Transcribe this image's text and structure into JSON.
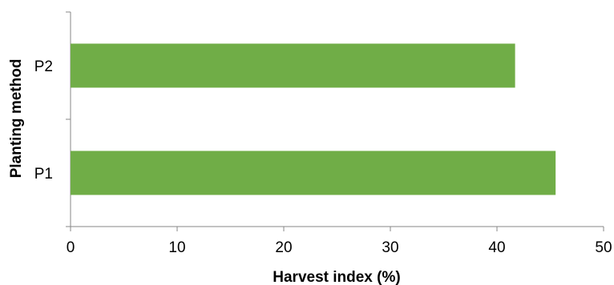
{
  "chart_data": {
    "type": "bar",
    "orientation": "horizontal",
    "categories": [
      "P2",
      "P1"
    ],
    "values": [
      41.7,
      45.5
    ],
    "xlabel": "Harvest index (%)",
    "ylabel": "Planting method",
    "xlim": [
      0,
      50
    ],
    "xticks": [
      "0",
      "10",
      "20",
      "30",
      "40",
      "50"
    ],
    "grid": false,
    "legend": "none",
    "bar_color": "#70ad47",
    "axis_color": "#878787"
  }
}
